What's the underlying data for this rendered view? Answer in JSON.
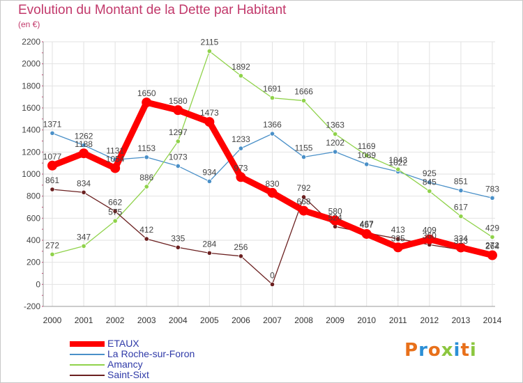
{
  "title": "Evolution du Montant de la Dette par Habitant",
  "subtitle": "(en €)",
  "logo": {
    "text": "Proxiti",
    "colors": [
      "#e8701a",
      "#2b8fd6",
      "#e8701a",
      "#8cc63f",
      "#2b8fd6",
      "#e8701a",
      "#8cc63f"
    ]
  },
  "chart_data": {
    "type": "line",
    "x": [
      "2000",
      "2001",
      "2002",
      "2003",
      "2004",
      "2005",
      "2006",
      "2007",
      "2008",
      "2009",
      "2010",
      "2011",
      "2012",
      "2013",
      "2014"
    ],
    "ylim": [
      -200,
      2200
    ],
    "yticks": [
      -200,
      0,
      200,
      400,
      600,
      800,
      1000,
      1200,
      1400,
      1600,
      1800,
      2000,
      2200
    ],
    "grid": true,
    "legend_position": "bottom-left",
    "series": [
      {
        "name": "ETAUX",
        "color": "#ff0000",
        "values": [
          1077,
          1188,
          1054,
          1650,
          1580,
          1473,
          973,
          830,
          668,
          580,
          457,
          335,
          409,
          334,
          264
        ]
      },
      {
        "name": "La Roche-sur-Foron",
        "color": "#4a90c8",
        "values": [
          1371,
          1262,
          1131,
          1153,
          1073,
          934,
          1233,
          1366,
          1155,
          1202,
          1089,
          1022,
          925,
          851,
          783
        ]
      },
      {
        "name": "Amancy",
        "color": "#8fd24a",
        "values": [
          272,
          347,
          575,
          886,
          1297,
          2115,
          1892,
          1691,
          1666,
          1363,
          1169,
          1043,
          845,
          617,
          429
        ]
      },
      {
        "name": "Saint-Sixt",
        "color": "#6b2020",
        "values": [
          861,
          834,
          662,
          412,
          335,
          284,
          256,
          0,
          792,
          524,
          467,
          413,
          360,
          313,
          272
        ]
      }
    ]
  }
}
